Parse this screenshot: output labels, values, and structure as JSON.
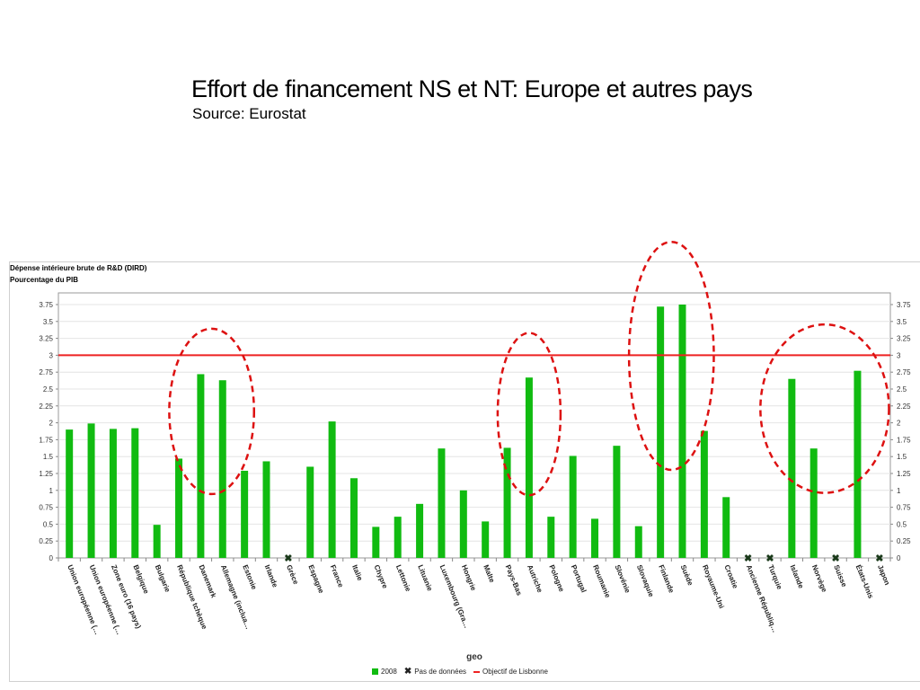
{
  "slide": {
    "title": "Effort de financement NS et NT: Europe et autres pays",
    "source": "Source: Eurostat"
  },
  "chart_data": {
    "type": "bar",
    "title": "Dépense intérieure brute de R&D (DIRD)",
    "subtitle": "Pourcentage du PIB",
    "xlabel": "geo",
    "ylim": [
      0,
      3.75
    ],
    "yticks": [
      "0",
      "0.25",
      "0.5",
      "0.75",
      "1",
      "1.25",
      "1.5",
      "1.75",
      "2",
      "2.25",
      "2.5",
      "2.75",
      "3",
      "3.25",
      "3.5",
      "3.75"
    ],
    "categories": [
      "Union européenne (…",
      "Union européenne (…",
      "Zone euro (16 pays)",
      "Belgique",
      "Bulgarie",
      "République tchèque",
      "Danemark",
      "Allemagne (inclua…",
      "Estonie",
      "Irlande",
      "Grèce",
      "Espagne",
      "France",
      "Italie",
      "Chypre",
      "Lettonie",
      "Lituanie",
      "Luxembourg (Gra…",
      "Hongrie",
      "Malte",
      "Pays-Bas",
      "Autriche",
      "Pologne",
      "Portugal",
      "Roumanie",
      "Slovénie",
      "Slovaquie",
      "Finlande",
      "Suède",
      "Royaume-Uni",
      "Croatie",
      "Ancienne Républiq…",
      "Turquie",
      "Islande",
      "Norvège",
      "Suisse",
      "États-Unis",
      "Japon"
    ],
    "series": [
      {
        "name": "2008",
        "color": "#11bb11",
        "values": [
          1.9,
          1.99,
          1.91,
          1.92,
          0.49,
          1.47,
          2.72,
          2.63,
          1.29,
          1.43,
          null,
          1.35,
          2.02,
          1.18,
          0.46,
          0.61,
          0.8,
          1.62,
          1.0,
          0.54,
          1.63,
          2.67,
          0.61,
          1.51,
          0.58,
          1.66,
          0.47,
          3.72,
          3.75,
          1.88,
          0.9,
          null,
          null,
          2.65,
          1.62,
          null,
          2.77,
          null
        ]
      }
    ],
    "reference_line": {
      "name": "Objectif de Lisbonne",
      "value": 3,
      "color": "#ee2222"
    },
    "missing_marker": {
      "name": "Pas de données",
      "symbol": "✖",
      "color": "#1a3a1a"
    },
    "highlight_groups": [
      {
        "categories": [
          "Danemark",
          "Allemagne (inclua…"
        ]
      },
      {
        "categories": [
          "Autriche"
        ]
      },
      {
        "categories": [
          "Finlande",
          "Suède"
        ]
      },
      {
        "categories": [
          "Islande",
          "Norvège",
          "Suisse",
          "États-Unis"
        ]
      }
    ],
    "highlight_color": "#dd1111",
    "grid": true,
    "legend_position": "bottom-center"
  }
}
